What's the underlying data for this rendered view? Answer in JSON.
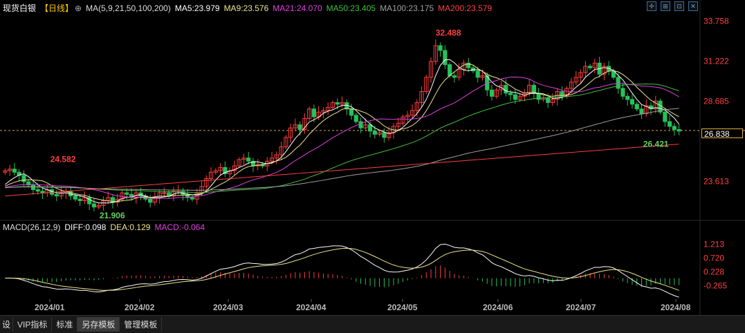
{
  "header": {
    "title": "现货白银",
    "period": "【日线】",
    "period_icon": "⊕",
    "ma_params": "MA(5,9,21,50,100,200)",
    "ma5": "MA5:23.979",
    "ma9": "MA9:23.576",
    "ma21": "MA21:24.070",
    "ma50": "MA50:23.405",
    "ma100": "MA100:23.175",
    "ma200": "MA200:23.579"
  },
  "macd_header": {
    "params": "MACD(26,12,9)",
    "diff": "DIFF:0.098",
    "dea": "DEA:0.129",
    "macd": "MACD:-0.064"
  },
  "toolbar": {
    "icons": [
      "crosshair-icon",
      "zoom-icon",
      "restore-icon",
      "close-icon"
    ]
  },
  "current_price": "26.838",
  "bottom_tabs": [
    "设",
    "VIP指标",
    "标准",
    "另存模板",
    "管理模板"
  ],
  "colors": {
    "up": "#ff3d3d",
    "down": "#25c25a",
    "ma5": "#ffffff",
    "ma9": "#f0e68c",
    "ma21": "#e040e0",
    "ma50": "#40c040",
    "ma100": "#a0a0a0",
    "ma200": "#ff4040",
    "diff": "#ffffff",
    "dea": "#f0e68c",
    "label": "#ff4040",
    "low_label": "#66cc66"
  },
  "chart_data": {
    "type": "candlestick",
    "x_labels": [
      "2024/01",
      "2024/02",
      "2024/03",
      "2024/04",
      "2024/05",
      "2024/06",
      "2024/07",
      "2024/08"
    ],
    "price_axis": [
      "33.758",
      "31.222",
      "28.685",
      "26.838",
      "23.613"
    ],
    "ylim": [
      21.2,
      34.3
    ],
    "annotations": [
      {
        "text": "24.582",
        "value": 24.582
      },
      {
        "text": "21.906",
        "value": 21.906
      },
      {
        "text": "32.488",
        "value": 32.488
      },
      {
        "text": "26.421",
        "value": 26.421
      }
    ],
    "macd_axis": [
      "1.213",
      "0.720",
      "0.228",
      "-0.265"
    ],
    "macd_ylim": [
      -0.75,
      1.6
    ],
    "closes": [
      24.3,
      24.4,
      24.2,
      24.0,
      23.6,
      23.4,
      23.1,
      23.0,
      22.9,
      23.1,
      22.8,
      22.7,
      22.9,
      23.0,
      22.7,
      22.5,
      22.4,
      22.6,
      22.2,
      22.0,
      22.1,
      22.4,
      22.6,
      22.3,
      22.5,
      22.9,
      22.8,
      22.6,
      22.9,
      22.7,
      22.5,
      22.3,
      22.6,
      22.9,
      22.9,
      22.7,
      23.0,
      23.0,
      22.8,
      22.6,
      22.5,
      22.9,
      23.3,
      23.8,
      24.2,
      24.3,
      24.5,
      24.1,
      24.3,
      24.6,
      25.0,
      25.1,
      24.9,
      24.6,
      24.7,
      24.6,
      24.9,
      25.1,
      25.3,
      25.8,
      26.4,
      27.0,
      27.2,
      26.9,
      27.6,
      28.2,
      27.7,
      28.0,
      28.1,
      28.3,
      28.6,
      28.5,
      28.6,
      28.2,
      27.8,
      27.4,
      27.0,
      27.2,
      26.8,
      26.6,
      26.7,
      26.4,
      26.7,
      27.1,
      27.3,
      27.7,
      27.8,
      28.1,
      28.6,
      29.3,
      30.2,
      31.2,
      32.2,
      31.9,
      31.0,
      30.3,
      30.2,
      30.7,
      31.1,
      30.8,
      30.6,
      30.2,
      30.3,
      29.4,
      29.0,
      29.4,
      29.7,
      29.2,
      29.1,
      28.8,
      29.0,
      29.2,
      29.7,
      29.2,
      28.8,
      28.9,
      28.6,
      28.8,
      29.3,
      29.0,
      29.5,
      29.9,
      30.2,
      30.5,
      30.9,
      30.8,
      31.1,
      30.4,
      30.9,
      30.6,
      30.2,
      29.5,
      29.0,
      28.8,
      28.5,
      28.2,
      27.9,
      28.4,
      28.2,
      28.7,
      28.0,
      27.4,
      27.1,
      26.9,
      26.8
    ]
  }
}
